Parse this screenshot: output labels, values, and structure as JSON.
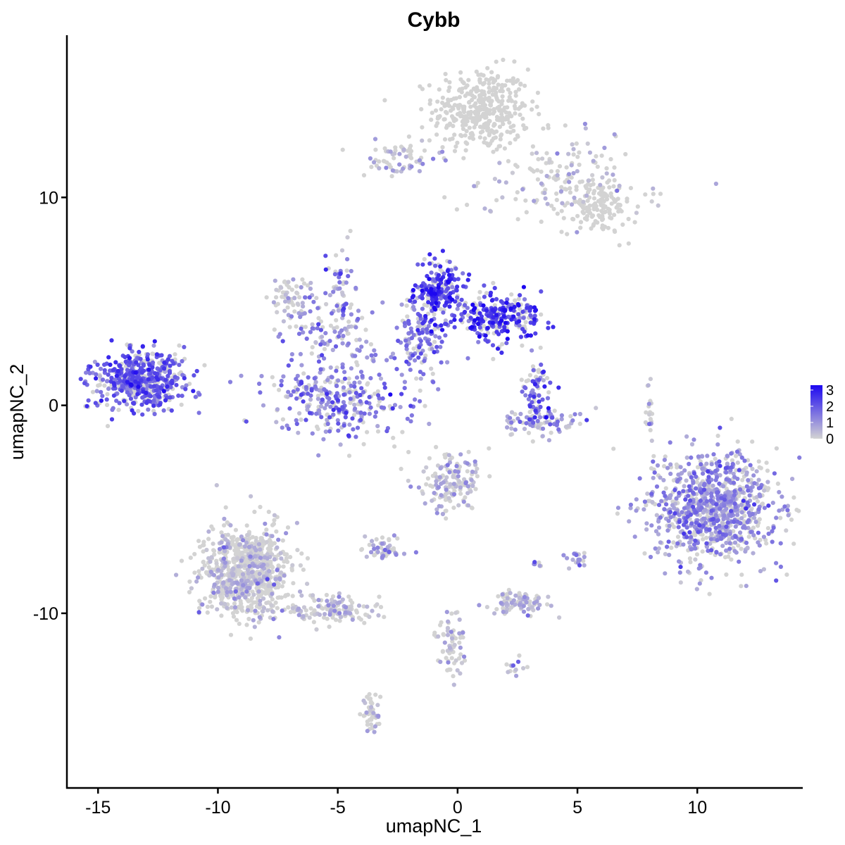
{
  "chart_data": {
    "type": "scatter",
    "title": "Cybb",
    "xlabel": "umapNC_1",
    "ylabel": "umapNC_2",
    "xlim": [
      -16.3,
      14.4
    ],
    "ylim": [
      -18.4,
      17.8
    ],
    "x_ticks": [
      -15,
      -10,
      -5,
      0,
      5,
      10
    ],
    "y_ticks": [
      -10,
      0,
      10
    ],
    "x_tick_labels": [
      "-15",
      "-10",
      "-5",
      "0",
      "5",
      "10"
    ],
    "y_tick_labels": [
      "-10",
      "0",
      "10"
    ],
    "grid": false,
    "legend": {
      "placement": "right",
      "type": "colorbar",
      "values": [
        3,
        2,
        1,
        0
      ],
      "labels": [
        "3",
        "2",
        "1",
        "0"
      ],
      "range": [
        0,
        3.3
      ]
    },
    "color_low": "#d3d3d3",
    "color_high": "#1d08f0",
    "clusters": [
      {
        "name": "c1",
        "cx": 1.0,
        "cy": 14.2,
        "sx": 1.0,
        "sy": 1.0,
        "n": 380,
        "expr": 0.0
      },
      {
        "name": "c2",
        "cx": 4.5,
        "cy": 10.8,
        "sx": 1.8,
        "sy": 1.2,
        "n": 160,
        "expr": 0.05
      },
      {
        "name": "c3",
        "cx": 5.8,
        "cy": 9.5,
        "sx": 0.7,
        "sy": 0.6,
        "n": 130,
        "expr": 0.0
      },
      {
        "name": "c4",
        "cx": -2.5,
        "cy": 11.8,
        "sx": 0.9,
        "sy": 0.5,
        "n": 70,
        "expr": 0.3
      },
      {
        "name": "c5",
        "cx": -7.0,
        "cy": 5.3,
        "sx": 0.5,
        "sy": 0.6,
        "n": 60,
        "expr": 0.15
      },
      {
        "name": "c6",
        "cx": -5.2,
        "cy": 3.8,
        "sx": 1.0,
        "sy": 0.9,
        "n": 110,
        "expr": 1.1
      },
      {
        "name": "c7",
        "cx": -4.9,
        "cy": 6.0,
        "sx": 0.3,
        "sy": 1.2,
        "n": 40,
        "expr": 1.6
      },
      {
        "name": "c8",
        "cx": -13.3,
        "cy": 1.2,
        "sx": 1.0,
        "sy": 0.7,
        "n": 560,
        "expr": 1.9
      },
      {
        "name": "c9",
        "cx": -5.0,
        "cy": 0.3,
        "sx": 1.5,
        "sy": 0.9,
        "n": 320,
        "expr": 1.4
      },
      {
        "name": "c10",
        "cx": -0.8,
        "cy": 5.3,
        "sx": 0.5,
        "sy": 0.8,
        "n": 220,
        "expr": 2.3
      },
      {
        "name": "c11",
        "cx": 1.7,
        "cy": 4.2,
        "sx": 0.9,
        "sy": 0.6,
        "n": 260,
        "expr": 2.4
      },
      {
        "name": "c12",
        "cx": -1.7,
        "cy": 3.2,
        "sx": 0.5,
        "sy": 1.0,
        "n": 120,
        "expr": 1.5
      },
      {
        "name": "c13",
        "cx": 3.3,
        "cy": 0.6,
        "sx": 0.3,
        "sy": 0.7,
        "n": 70,
        "expr": 2.0
      },
      {
        "name": "c14",
        "cx": 3.5,
        "cy": -0.8,
        "sx": 0.9,
        "sy": 0.3,
        "n": 90,
        "expr": 0.9
      },
      {
        "name": "c15",
        "cx": 10.7,
        "cy": -4.9,
        "sx": 1.3,
        "sy": 1.3,
        "n": 950,
        "expr": 1.0
      },
      {
        "name": "c16",
        "cx": -0.3,
        "cy": -3.7,
        "sx": 0.6,
        "sy": 0.7,
        "n": 150,
        "expr": 0.25
      },
      {
        "name": "c17",
        "cx": -8.8,
        "cy": -8.0,
        "sx": 0.9,
        "sy": 1.1,
        "n": 800,
        "expr": 0.02
      },
      {
        "name": "c18",
        "cx": -5.0,
        "cy": -9.8,
        "sx": 0.9,
        "sy": 0.3,
        "n": 130,
        "expr": 0.02
      },
      {
        "name": "c19",
        "cx": -3.1,
        "cy": -7.0,
        "sx": 0.4,
        "sy": 0.3,
        "n": 50,
        "expr": 0.6
      },
      {
        "name": "c20",
        "cx": 2.6,
        "cy": -9.5,
        "sx": 0.6,
        "sy": 0.3,
        "n": 90,
        "expr": 0.5
      },
      {
        "name": "c21",
        "cx": -0.3,
        "cy": -11.5,
        "sx": 0.3,
        "sy": 0.9,
        "n": 70,
        "expr": 0.05
      },
      {
        "name": "c22",
        "cx": -3.6,
        "cy": -14.8,
        "sx": 0.2,
        "sy": 0.6,
        "n": 45,
        "expr": 0.05
      },
      {
        "name": "c23",
        "cx": 8.0,
        "cy": -0.2,
        "sx": 0.1,
        "sy": 0.6,
        "n": 20,
        "expr": 0.3
      },
      {
        "name": "c24",
        "cx": 5.0,
        "cy": -7.4,
        "sx": 0.2,
        "sy": 0.2,
        "n": 18,
        "expr": 0.8
      },
      {
        "name": "c25",
        "cx": 2.3,
        "cy": -12.6,
        "sx": 0.2,
        "sy": 0.2,
        "n": 14,
        "expr": 0.2
      },
      {
        "name": "c26",
        "cx": 3.3,
        "cy": -7.7,
        "sx": 0.1,
        "sy": 0.1,
        "n": 6,
        "expr": 1.0
      }
    ]
  }
}
